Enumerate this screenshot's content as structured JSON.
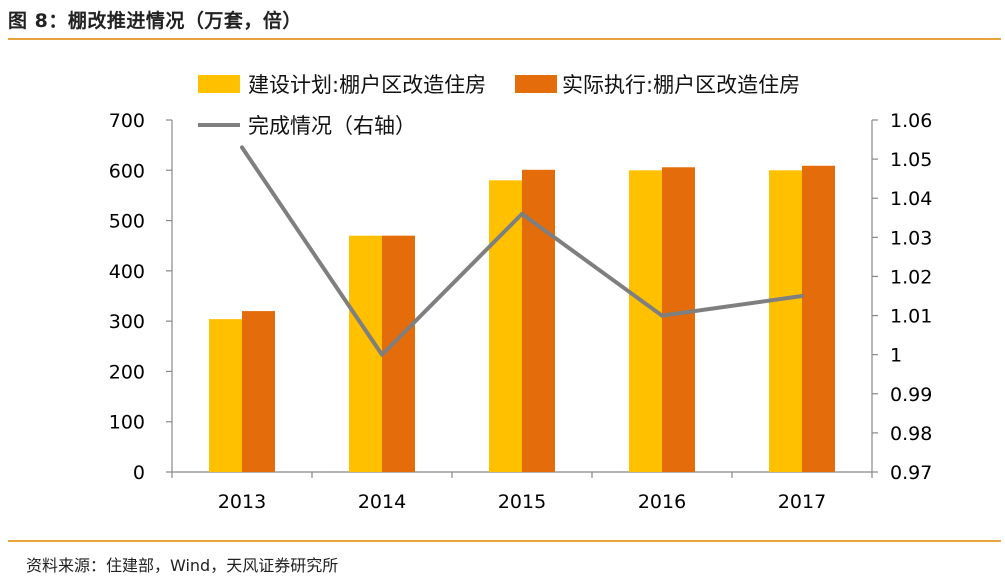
{
  "figure": {
    "title": "图 8：棚改推进情况（万套，倍）",
    "source": "资料来源：住建部，Wind，天风证券研究所"
  },
  "colors": {
    "planned": "#FFC000",
    "actual": "#E46C0A",
    "ratio": "#7F7F7F",
    "accent_rule": "#E8A33A"
  },
  "chart_data": {
    "type": "bar",
    "title": "棚改推进情况（万套，倍）",
    "categories": [
      "2013",
      "2014",
      "2015",
      "2016",
      "2017"
    ],
    "series": [
      {
        "name": "建设计划:棚户区改造住房",
        "type": "bar",
        "axis": "left",
        "values": [
          304,
          470,
          580,
          600,
          600
        ]
      },
      {
        "name": "实际执行:棚户区改造住房",
        "type": "bar",
        "axis": "left",
        "values": [
          320,
          470,
          601,
          606,
          609
        ]
      },
      {
        "name": "完成情况（右轴）",
        "type": "line",
        "axis": "right",
        "values": [
          1.053,
          1.0,
          1.036,
          1.01,
          1.015
        ]
      }
    ],
    "y_left": {
      "min": 0,
      "max": 700,
      "ticks": [
        "0",
        "100",
        "200",
        "300",
        "400",
        "500",
        "600",
        "700"
      ]
    },
    "y_right": {
      "min": 0.97,
      "max": 1.06,
      "ticks": [
        "0.97",
        "0.98",
        "0.99",
        "1",
        "1.01",
        "1.02",
        "1.03",
        "1.04",
        "1.05",
        "1.06"
      ]
    },
    "legend_position": "top",
    "grid": false
  }
}
